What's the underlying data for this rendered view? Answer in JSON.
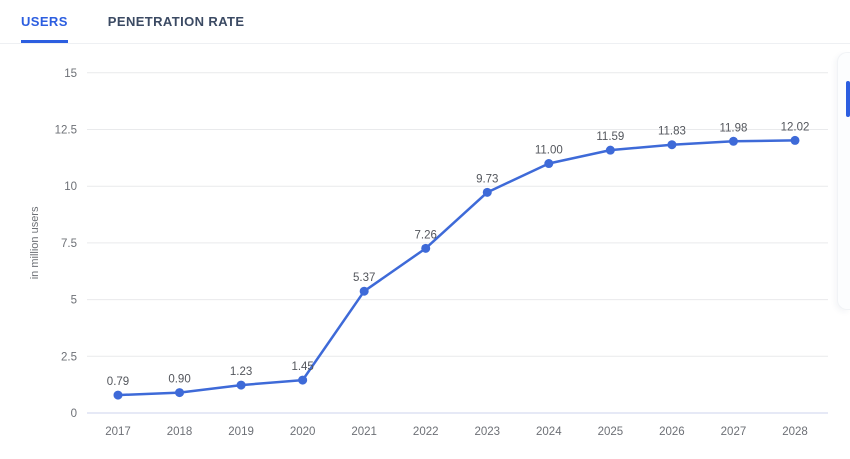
{
  "tabs": [
    {
      "label": "USERS",
      "active": true
    },
    {
      "label": "PENETRATION RATE",
      "active": false
    }
  ],
  "colors": {
    "accent": "#2c5ee0",
    "tab_inactive": "#3b4a63",
    "line": "#3e6ad8",
    "marker": "#3e6ad8",
    "grid": "#e9eaec",
    "zero_line": "#ccd3ee",
    "tick_text": "#6d7076",
    "data_label": "#53565c",
    "axis_title": "#6d7076"
  },
  "chart_data": {
    "type": "line",
    "title": "",
    "categories": [
      "2017",
      "2018",
      "2019",
      "2020",
      "2021",
      "2022",
      "2023",
      "2024",
      "2025",
      "2026",
      "2027",
      "2028"
    ],
    "series": [
      {
        "name": "Users",
        "values": [
          0.79,
          0.9,
          1.23,
          1.45,
          5.37,
          7.26,
          9.73,
          11.0,
          11.59,
          11.83,
          11.98,
          12.02
        ],
        "point_labels": [
          "0.79",
          "0.90",
          "1.23",
          "1.45",
          "5.37",
          "7.26",
          "9.73",
          "11.00",
          "11.59",
          "11.83",
          "11.98",
          "12.02"
        ]
      }
    ],
    "xlabel": "",
    "ylabel": "in million users",
    "ylim": [
      0,
      15
    ],
    "yticks": [
      {
        "v": 0,
        "label": "0"
      },
      {
        "v": 2.5,
        "label": "2.5"
      },
      {
        "v": 5,
        "label": "5"
      },
      {
        "v": 7.5,
        "label": "7.5"
      },
      {
        "v": 10,
        "label": "10"
      },
      {
        "v": 12.5,
        "label": "12.5"
      },
      {
        "v": 15,
        "label": "15"
      }
    ],
    "grid": true,
    "legend_position": "none"
  }
}
